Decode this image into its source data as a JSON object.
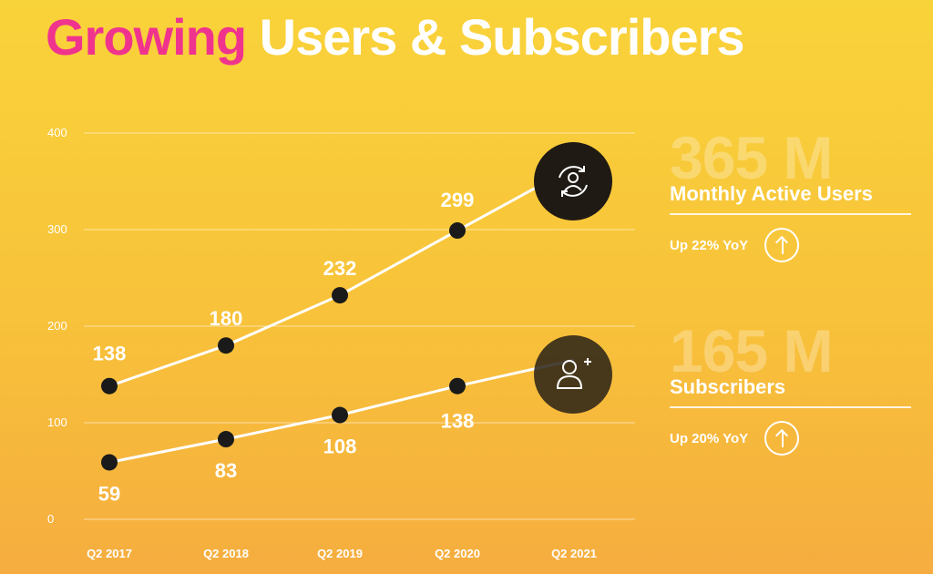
{
  "title": {
    "accent": "Growing",
    "rest": " Users & Subscribers"
  },
  "stats": [
    {
      "value": "365 M",
      "label": "Monthly Active Users",
      "yoy": "Up 22% YoY"
    },
    {
      "value": "165 M",
      "label": "Subscribers",
      "yoy": "Up 20% YoY"
    }
  ],
  "colors": {
    "accent": "#f0348e",
    "line": "#ffffff",
    "marker": "#1a1a1a",
    "icon_circle": "#1f1a14"
  },
  "icons": [
    "refresh-user-icon",
    "add-user-icon"
  ],
  "chart_data": {
    "type": "line",
    "categories": [
      "Q2  2017",
      "Q2  2018",
      "Q2  2019",
      "Q2 2020",
      "Q2 2021"
    ],
    "yticks": [
      0,
      100,
      200,
      300,
      400
    ],
    "ylim": [
      0,
      400
    ],
    "grid": true,
    "series": [
      {
        "name": "Monthly Active Users",
        "values": [
          138,
          180,
          232,
          299,
          365
        ],
        "labels": [
          "138",
          "180",
          "232",
          "299",
          ""
        ]
      },
      {
        "name": "Subscribers",
        "values": [
          59,
          83,
          108,
          138,
          165
        ],
        "labels": [
          "59",
          "83",
          "108",
          "138",
          ""
        ]
      }
    ]
  }
}
